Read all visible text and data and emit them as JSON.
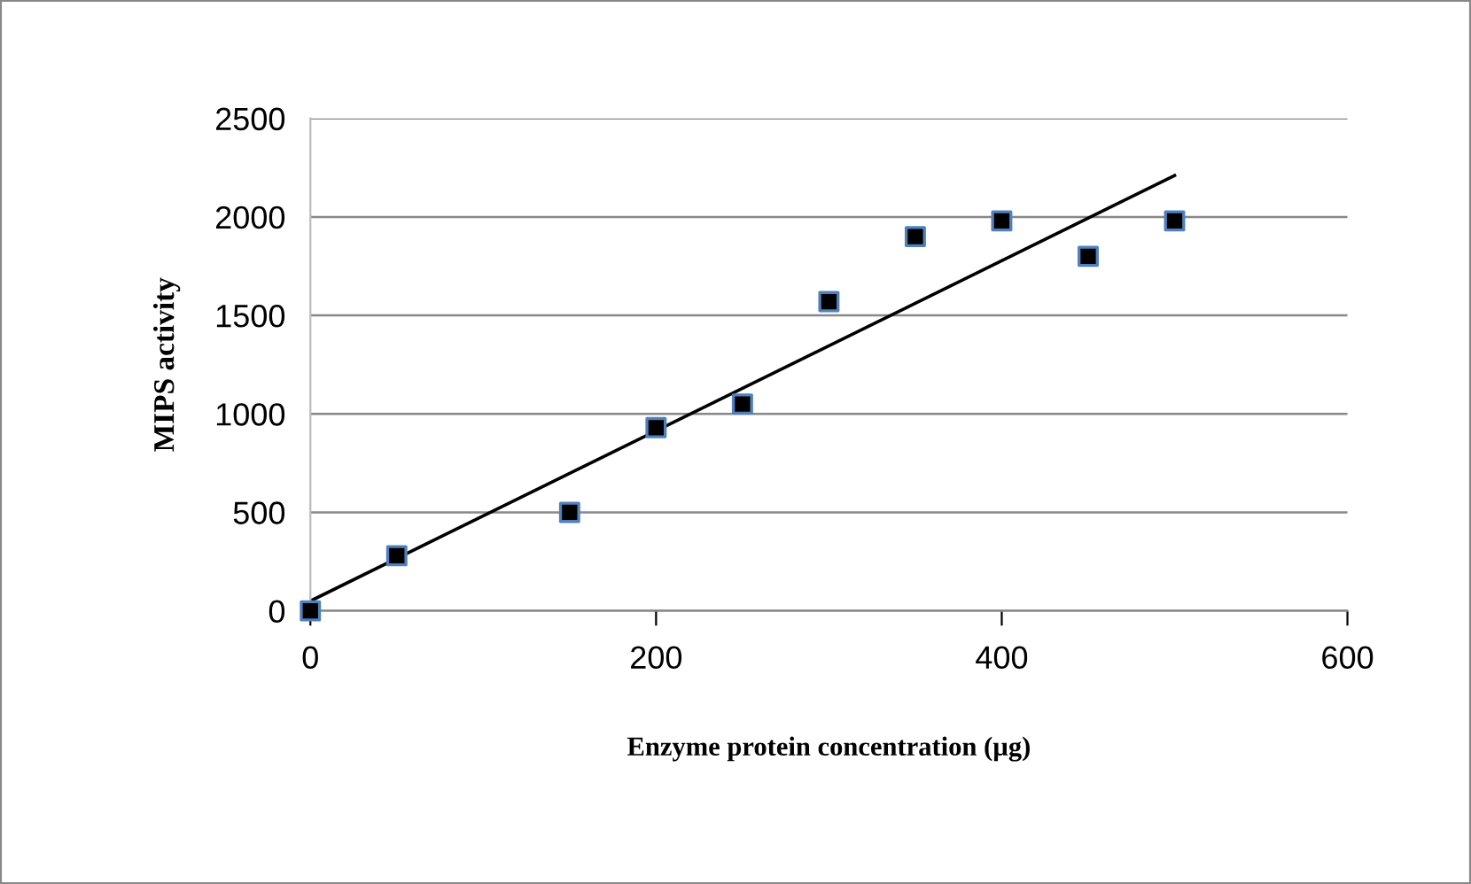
{
  "chart_data": {
    "type": "scatter",
    "xlabel": "Enzyme protein concentration (µg)",
    "ylabel": "MIPS activity",
    "xlim": [
      0,
      600
    ],
    "xticks": [
      0,
      200,
      400,
      600
    ],
    "ylim": [
      0,
      2500
    ],
    "yticks": [
      0,
      500,
      1000,
      1500,
      2000,
      2500
    ],
    "grid": "y",
    "legend": false,
    "series": [
      {
        "color": "#000000",
        "marker": "square",
        "x": [
          0,
          50,
          150,
          200,
          250,
          300,
          350,
          400,
          450,
          500
        ],
        "values": [
          0,
          280,
          500,
          930,
          1050,
          1570,
          1900,
          1980,
          1800,
          1980
        ]
      },
      {
        "type": "line",
        "color": "#000000",
        "marker": "none",
        "line_style": "solid",
        "x": [
          0,
          500
        ],
        "values": [
          50,
          2210
        ]
      }
    ]
  }
}
